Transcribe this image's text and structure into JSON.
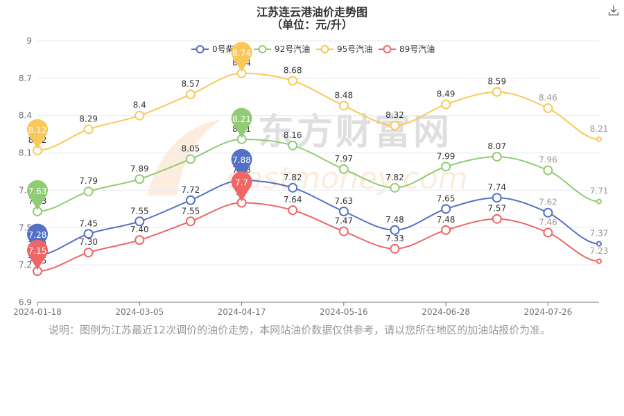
{
  "title_line1": "江苏连云港油价走势图",
  "title_line2": "（单位：元/升）",
  "note": "说明：图例为江苏最近12次调价的油价走势，本网站油价数据仅供参考，请以您所在地区的加油站报价为准。",
  "watermark": {
    "cn": "东方财富网",
    "en": "eastmoney.com"
  },
  "download_icon": "download-icon",
  "chart_data": {
    "type": "line",
    "title": "江苏连云港油价走势图",
    "subtitle": "（单位：元/升）",
    "ylim": [
      6.9,
      9
    ],
    "yticks": [
      "6.9",
      "7.2",
      "7.5",
      "7.8",
      "8.1",
      "8.4",
      "8.7",
      "9"
    ],
    "x_points": 12,
    "x_tick_labels": [
      {
        "index": 0,
        "label": "2024-01-18"
      },
      {
        "index": 2,
        "label": "2024-03-05"
      },
      {
        "index": 4,
        "label": "2024-04-17"
      },
      {
        "index": 6,
        "label": "2024-05-16"
      },
      {
        "index": 8,
        "label": "2024-06-28"
      },
      {
        "index": 10,
        "label": "2024-07-26"
      }
    ],
    "grid": true,
    "legend_position": "top-center",
    "series": [
      {
        "name": "0号柴油",
        "color": "#5470c6",
        "values": [
          7.28,
          7.45,
          7.55,
          7.72,
          7.88,
          7.82,
          7.63,
          7.48,
          7.65,
          7.74,
          7.62,
          7.37
        ],
        "labels": [
          "7.28",
          "7.45",
          "7.55",
          "7.72",
          "7.88",
          "7.82",
          "7.63",
          "7.48",
          "7.65",
          "7.74",
          "7.62",
          "7.37"
        ],
        "min_index": 0,
        "max_index": 4
      },
      {
        "name": "92号汽油",
        "color": "#91cc75",
        "values": [
          7.63,
          7.79,
          7.89,
          8.05,
          8.21,
          8.16,
          7.97,
          7.82,
          7.99,
          8.07,
          7.96,
          7.71
        ],
        "labels": [
          "7.63",
          "7.79",
          "7.89",
          "8.05",
          "8.21",
          "8.16",
          "7.97",
          "7.82",
          "7.99",
          "8.07",
          "7.96",
          "7.71"
        ],
        "min_index": 0,
        "max_index": 4
      },
      {
        "name": "95号汽油",
        "color": "#fac858",
        "values": [
          8.12,
          8.29,
          8.4,
          8.57,
          8.74,
          8.68,
          8.48,
          8.32,
          8.49,
          8.59,
          8.46,
          8.21
        ],
        "labels": [
          "8.12",
          "8.29",
          "8.4",
          "8.57",
          "8.74",
          "8.68",
          "8.48",
          "8.32",
          "8.49",
          "8.59",
          "8.46",
          "8.21"
        ],
        "min_index": 0,
        "max_index": 4
      },
      {
        "name": "89号汽油",
        "color": "#ee6666",
        "values": [
          7.15,
          7.3,
          7.4,
          7.55,
          7.7,
          7.64,
          7.47,
          7.33,
          7.48,
          7.57,
          7.46,
          7.23
        ],
        "labels": [
          "7.15",
          "7.30",
          "7.40",
          "7.55",
          "7.7",
          "7.64",
          "7.47",
          "7.33",
          "7.48",
          "7.57",
          "7.46",
          "7.23"
        ],
        "min_index": 0,
        "max_index": 4
      }
    ]
  }
}
